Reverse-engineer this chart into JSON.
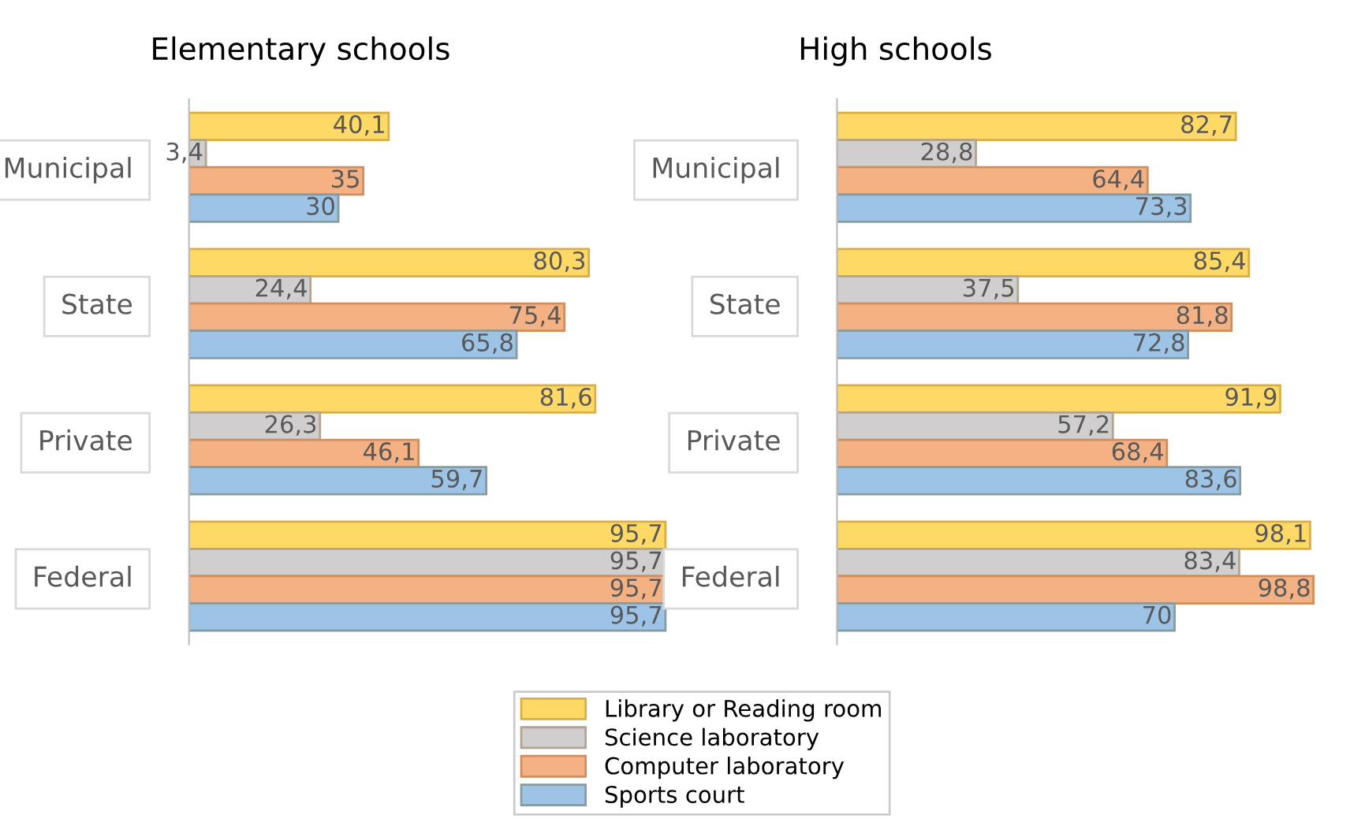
{
  "chart_data": [
    {
      "type": "bar",
      "orientation": "horizontal",
      "title": "Elementary schools",
      "categories": [
        "Municipal",
        "State",
        "Private",
        "Federal"
      ],
      "tick_labels": "y",
      "legend": "bottom",
      "series": [
        {
          "name": "Library or Reading room",
          "color": "#ffd966",
          "values": [
            40.1,
            80.3,
            81.6,
            95.7
          ],
          "value_labels": [
            "40,1",
            "80,3",
            "81,6",
            "95,7"
          ]
        },
        {
          "name": "Science laboratory",
          "color": "#d0cece",
          "values": [
            3.4,
            24.4,
            26.3,
            95.7
          ],
          "value_labels": [
            "3,4",
            "24,4",
            "26,3",
            "95,7"
          ]
        },
        {
          "name": "Computer laboratory",
          "color": "#f4b183",
          "values": [
            35,
            75.4,
            46.1,
            95.7
          ],
          "value_labels": [
            "35",
            "75,4",
            "46,1",
            "95,7"
          ]
        },
        {
          "name": "Sports court",
          "color": "#9dc3e6",
          "values": [
            30,
            65.8,
            59.7,
            95.7
          ],
          "value_labels": [
            "30",
            "65,8",
            "59,7",
            "95,7"
          ]
        }
      ]
    },
    {
      "type": "bar",
      "orientation": "horizontal",
      "title": "High schools",
      "categories": [
        "Municipal",
        "State",
        "Private",
        "Federal"
      ],
      "tick_labels": "y",
      "series": [
        {
          "color": "#ffd966",
          "values": [
            82.7,
            85.4,
            91.9,
            98.1
          ],
          "value_labels": [
            "82,7",
            "85,4",
            "91,9",
            "98,1"
          ]
        },
        {
          "color": "#d0cece",
          "values": [
            28.8,
            37.5,
            57.2,
            83.4
          ],
          "value_labels": [
            "28,8",
            "37,5",
            "57,2",
            "83,4"
          ]
        },
        {
          "color": "#f4b183",
          "values": [
            64.4,
            81.8,
            68.4,
            98.8
          ],
          "value_labels": [
            "64,4",
            "81,8",
            "68,4",
            "98,8"
          ]
        },
        {
          "color": "#9dc3e6",
          "values": [
            73.3,
            72.8,
            83.6,
            70
          ],
          "value_labels": [
            "73,3",
            "72,8",
            "83,6",
            "70"
          ]
        }
      ]
    }
  ]
}
